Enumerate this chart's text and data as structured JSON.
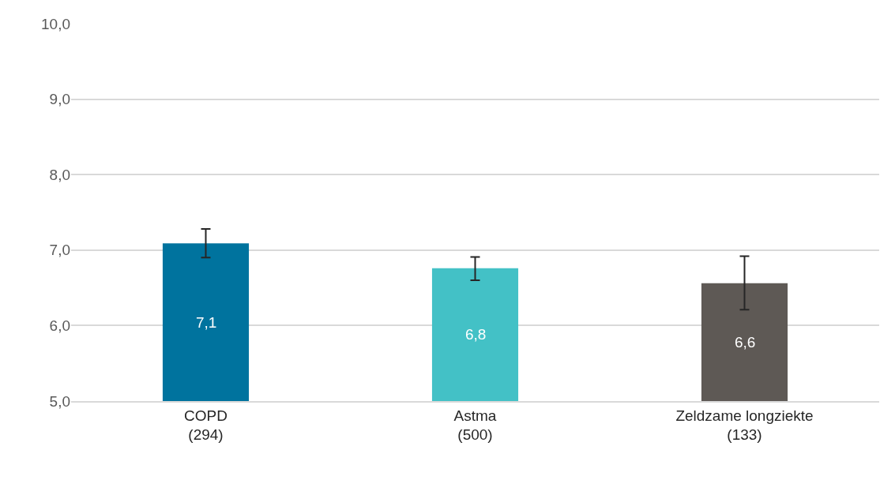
{
  "chart_data": {
    "type": "bar",
    "categories": [
      "COPD\n(294)",
      "Astma\n(500)",
      "Zeldzame longziekte\n(133)"
    ],
    "values": [
      7.09,
      6.76,
      6.56
    ],
    "colors": [
      "#00739e",
      "#43c1c6",
      "#5e5955"
    ],
    "value_labels": [
      "7,1",
      "6,8",
      "6,6"
    ],
    "errors": [
      [
        6.9,
        7.28
      ],
      [
        6.6,
        6.91
      ],
      [
        6.21,
        6.92
      ]
    ],
    "ylim": [
      5,
      10
    ],
    "yticks": [
      {
        "value": 5,
        "label": "5,0"
      },
      {
        "value": 6,
        "label": "6,0"
      },
      {
        "value": 7,
        "label": "7,0"
      },
      {
        "value": 8,
        "label": "8,0"
      },
      {
        "value": 9,
        "label": "9,0"
      },
      {
        "value": 10,
        "label": "10,0"
      }
    ],
    "grid": "y"
  }
}
